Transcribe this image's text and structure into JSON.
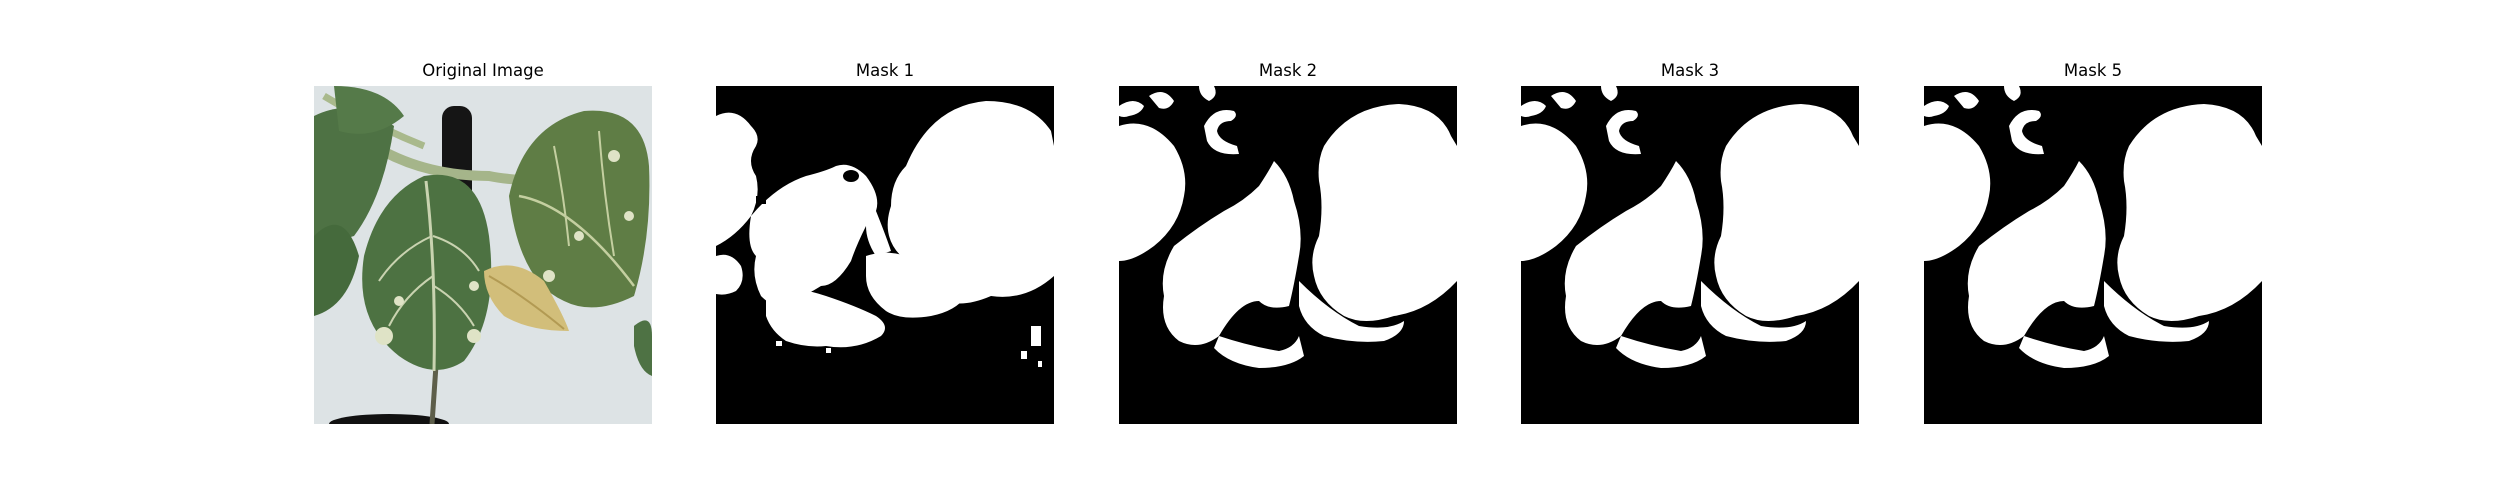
{
  "figure": {
    "panels": [
      {
        "title": "Original Image",
        "kind": "photo"
      },
      {
        "title": "Mask 1",
        "kind": "mask"
      },
      {
        "title": "Mask 2",
        "kind": "mask"
      },
      {
        "title": "Mask 3",
        "kind": "mask"
      },
      {
        "title": "Mask 5",
        "kind": "mask"
      }
    ]
  },
  "colors": {
    "mask_background": "#000000",
    "mask_foreground": "#ffffff",
    "leaf": "#4f6f43",
    "leaf_dark": "#35522f",
    "leaf_variegation": "#dfe3c6",
    "wilted_leaf": "#d6c27a",
    "stem": "#8fa06c",
    "wall": "#dfe4e6",
    "pot": "#111111"
  }
}
